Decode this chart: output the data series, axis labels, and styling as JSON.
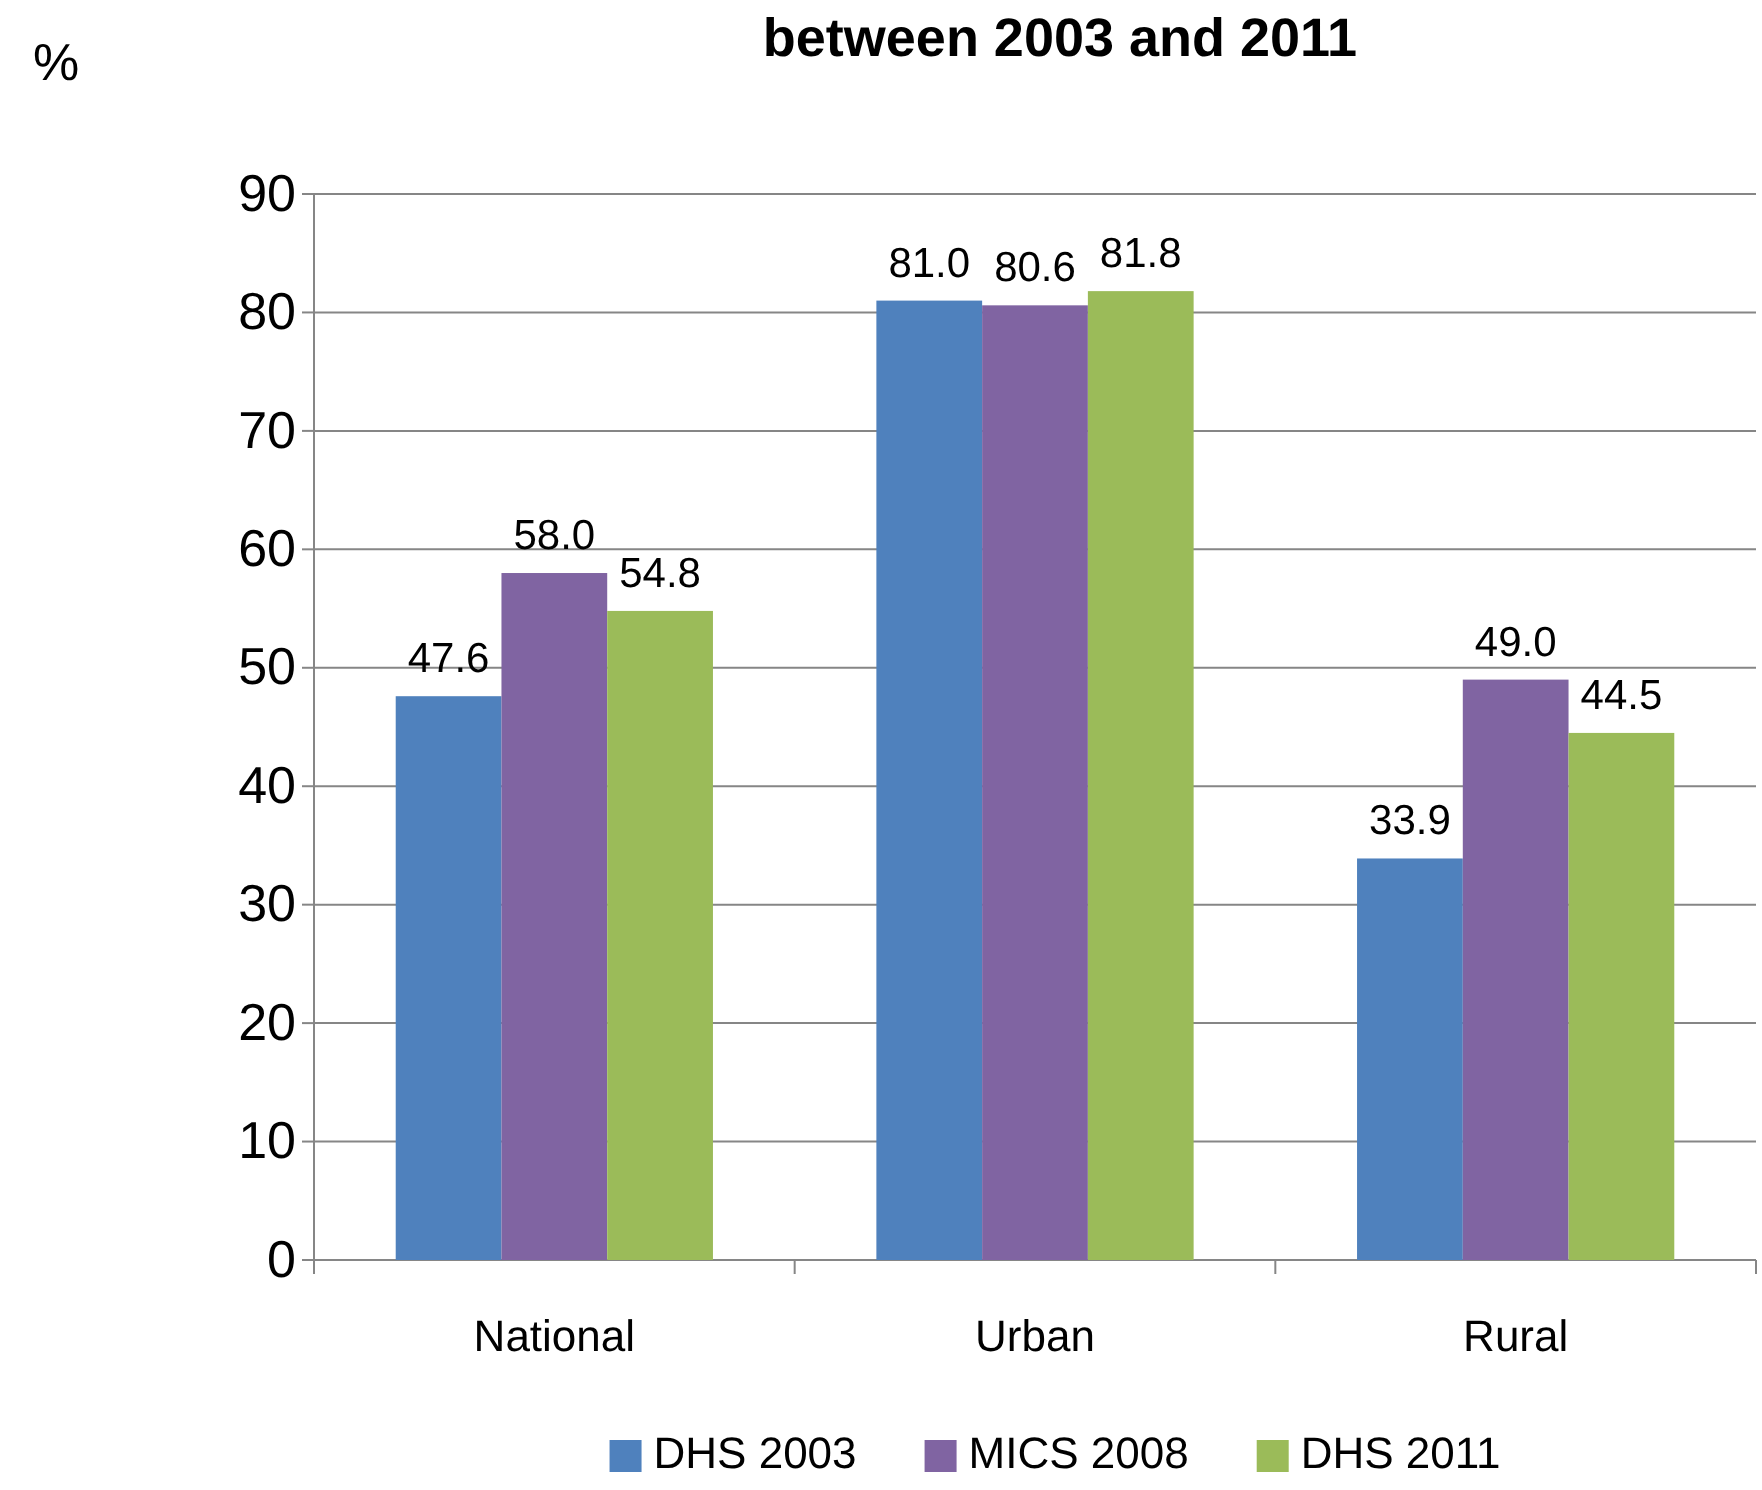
{
  "chart_data": {
    "type": "bar",
    "title": "between 2003 and 2011",
    "ylabel": "%",
    "categories": [
      "National",
      "Urban",
      "Rural"
    ],
    "series": [
      {
        "name": "DHS 2003",
        "color": "#4f81bd",
        "values": [
          47.6,
          81.0,
          33.9
        ]
      },
      {
        "name": "MICS 2008",
        "color": "#8064a2",
        "values": [
          58.0,
          80.6,
          49.0
        ]
      },
      {
        "name": "DHS 2011",
        "color": "#9bbb59",
        "values": [
          54.8,
          81.8,
          44.5
        ]
      }
    ],
    "ylim": [
      0,
      90
    ],
    "yticks": [
      0,
      10,
      20,
      30,
      40,
      50,
      60,
      70,
      80,
      90
    ],
    "grid": "y",
    "legend": "bottom",
    "value_labels": [
      [
        "47.6",
        "81.0",
        "33.9"
      ],
      [
        "58.0",
        "80.6",
        "49.0"
      ],
      [
        "54.8",
        "81.8",
        "44.5"
      ]
    ]
  }
}
